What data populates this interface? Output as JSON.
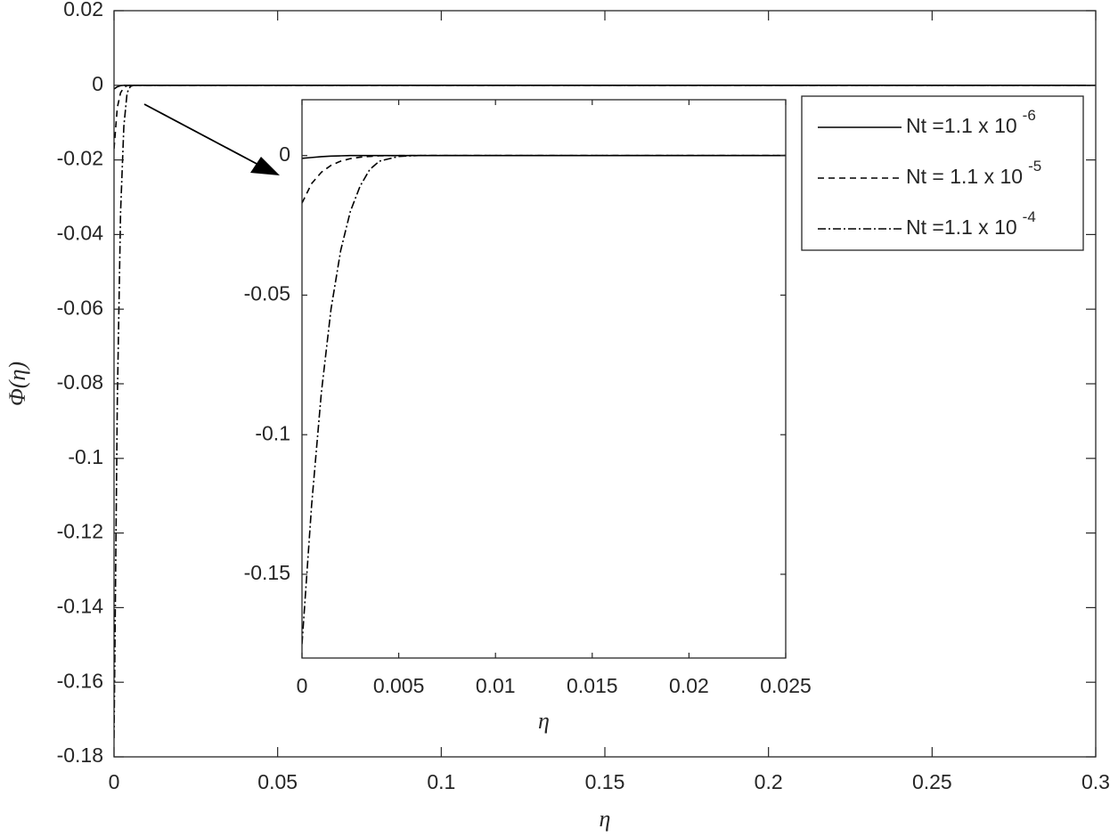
{
  "chart_data": [
    {
      "type": "line",
      "xlabel": "η",
      "ylabel": "Φ(η)",
      "x": [
        0,
        0.001,
        0.002,
        0.003,
        0.004,
        0.005,
        0.006,
        0.01,
        0.05,
        0.1,
        0.2,
        0.3
      ],
      "xlim": [
        0,
        0.3
      ],
      "xticks": [
        0,
        0.05,
        0.1,
        0.15,
        0.2,
        0.25,
        0.3
      ],
      "ylim": [
        -0.18,
        0.02
      ],
      "yticks": [
        0.02,
        0,
        -0.02,
        -0.04,
        -0.06,
        -0.08,
        -0.1,
        -0.12,
        -0.14,
        -0.16,
        -0.18
      ],
      "legend": "upper right",
      "series": [
        {
          "name": "Nt =1.1 x 10",
          "name_superscript": "-6",
          "color": "#000000",
          "style": "solid",
          "values": [
            -0.001,
            -0.0004,
            -0.0001,
            0,
            0,
            0,
            0,
            0,
            0,
            0,
            0,
            0
          ]
        },
        {
          "name": "Nt = 1.1 x 10",
          "name_superscript": "-5",
          "color": "#000000",
          "style": "dashed",
          "values": [
            -0.017,
            -0.006,
            -0.002,
            -0.0006,
            -0.0001,
            0,
            0,
            0,
            0,
            0,
            0,
            0
          ]
        },
        {
          "name": "Nt =1.1 x 10",
          "name_superscript": "-4",
          "color": "#000000",
          "style": "dashdot",
          "values": [
            -0.175,
            -0.085,
            -0.034,
            -0.011,
            -0.002,
            -0.0003,
            0,
            0,
            0,
            0,
            0,
            0
          ]
        }
      ]
    },
    {
      "type": "line",
      "xlabel": "η",
      "x": [
        0,
        0.0005,
        0.001,
        0.0015,
        0.002,
        0.0025,
        0.003,
        0.0035,
        0.004,
        0.005,
        0.006,
        0.01,
        0.015,
        0.02,
        0.025
      ],
      "xlim": [
        0,
        0.025
      ],
      "xticks": [
        0,
        0.005,
        0.01,
        0.015,
        0.02,
        0.025
      ],
      "ylim": [
        -0.18,
        0.02
      ],
      "yticks": [
        0,
        -0.05,
        -0.1,
        -0.15
      ],
      "series": [
        {
          "color": "#000000",
          "style": "solid",
          "values": [
            -0.001,
            -0.0007,
            -0.0004,
            -0.0002,
            -0.0001,
            0,
            0,
            0,
            0,
            0,
            0,
            0,
            0,
            0,
            0
          ]
        },
        {
          "color": "#000000",
          "style": "dashed",
          "values": [
            -0.017,
            -0.01,
            -0.006,
            -0.0035,
            -0.002,
            -0.0011,
            -0.0006,
            -0.0003,
            -0.0001,
            0,
            0,
            0,
            0,
            0,
            0
          ]
        },
        {
          "color": "#000000",
          "style": "dashdot",
          "values": [
            -0.175,
            -0.125,
            -0.085,
            -0.055,
            -0.034,
            -0.02,
            -0.011,
            -0.005,
            -0.002,
            -0.0003,
            0,
            0,
            0,
            0,
            0
          ]
        }
      ]
    }
  ]
}
